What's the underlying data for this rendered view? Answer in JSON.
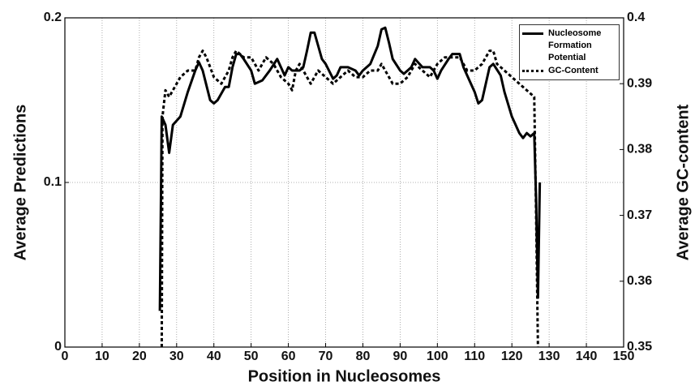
{
  "chart_data": {
    "type": "line",
    "xlabel": "Position in Nucleosomes",
    "ylabel": "Average Predictions",
    "y2label": "Average GC-content",
    "xlim": [
      0,
      150
    ],
    "xticks": [
      0,
      10,
      20,
      30,
      40,
      50,
      60,
      70,
      80,
      90,
      100,
      110,
      120,
      130,
      140,
      150
    ],
    "ylim": [
      0,
      0.2
    ],
    "yticks": [
      0,
      0.1,
      0.2
    ],
    "y2lim": [
      0.35,
      0.4
    ],
    "y2ticks": [
      0.35,
      0.36,
      0.37,
      0.38,
      0.39,
      0.4
    ],
    "grid": true,
    "legend": "upper right",
    "series": [
      {
        "name": "Nucleosome Formation Potential",
        "color": "#000000",
        "line_style": "solid",
        "x": [
          25.5,
          26,
          27,
          28,
          29,
          31,
          33,
          35,
          36,
          37,
          39,
          40,
          41,
          43,
          44,
          45,
          46,
          47,
          48,
          50,
          51,
          53,
          55,
          57,
          58,
          59,
          60,
          61,
          63,
          64,
          65,
          66,
          67,
          68,
          69,
          70,
          72,
          73,
          74,
          76,
          78,
          79,
          80,
          82,
          84,
          85,
          86,
          87,
          88,
          90,
          91,
          92,
          93,
          94,
          96,
          98,
          99,
          100,
          101,
          103,
          104,
          106,
          107,
          109,
          110,
          111,
          112,
          113,
          114,
          115,
          117,
          118,
          120,
          122,
          123,
          124,
          125,
          126,
          126.5,
          127,
          127.5
        ],
        "values": [
          0.022,
          0.14,
          0.135,
          0.118,
          0.135,
          0.14,
          0.155,
          0.168,
          0.173,
          0.168,
          0.15,
          0.148,
          0.15,
          0.158,
          0.158,
          0.17,
          0.178,
          0.178,
          0.175,
          0.168,
          0.16,
          0.162,
          0.168,
          0.175,
          0.17,
          0.165,
          0.17,
          0.168,
          0.168,
          0.17,
          0.18,
          0.191,
          0.191,
          0.183,
          0.175,
          0.172,
          0.163,
          0.165,
          0.17,
          0.17,
          0.168,
          0.165,
          0.168,
          0.172,
          0.183,
          0.193,
          0.194,
          0.185,
          0.175,
          0.168,
          0.166,
          0.168,
          0.17,
          0.175,
          0.17,
          0.17,
          0.168,
          0.163,
          0.168,
          0.175,
          0.178,
          0.178,
          0.17,
          0.16,
          0.155,
          0.148,
          0.15,
          0.16,
          0.17,
          0.172,
          0.165,
          0.155,
          0.14,
          0.13,
          0.127,
          0.13,
          0.128,
          0.13,
          0.09,
          0.03,
          0.1
        ]
      },
      {
        "name": "GC-Content",
        "color": "#000000",
        "line_style": "dotted",
        "axis": "y2",
        "x": [
          26,
          26.2,
          27,
          28,
          29,
          31,
          33,
          35,
          36,
          37,
          38,
          40,
          42,
          44,
          45,
          46,
          48,
          50,
          52,
          54,
          56,
          58,
          60,
          61,
          62,
          63,
          64,
          66,
          68,
          70,
          72,
          74,
          76,
          78,
          80,
          82,
          84,
          85,
          86,
          88,
          90,
          92,
          94,
          96,
          98,
          100,
          102,
          104,
          106,
          108,
          110,
          112,
          114,
          115,
          116,
          118,
          120,
          122,
          124,
          126,
          126.5,
          127
        ],
        "values": [
          0.35,
          0.385,
          0.389,
          0.388,
          0.389,
          0.391,
          0.392,
          0.392,
          0.394,
          0.395,
          0.394,
          0.391,
          0.39,
          0.392,
          0.394,
          0.395,
          0.394,
          0.394,
          0.392,
          0.394,
          0.393,
          0.391,
          0.39,
          0.389,
          0.392,
          0.393,
          0.392,
          0.39,
          0.392,
          0.391,
          0.39,
          0.391,
          0.392,
          0.391,
          0.391,
          0.392,
          0.392,
          0.393,
          0.392,
          0.39,
          0.39,
          0.391,
          0.393,
          0.392,
          0.391,
          0.393,
          0.394,
          0.394,
          0.394,
          0.392,
          0.392,
          0.393,
          0.395,
          0.395,
          0.393,
          0.392,
          0.391,
          0.39,
          0.389,
          0.388,
          0.37,
          0.35
        ]
      }
    ]
  }
}
